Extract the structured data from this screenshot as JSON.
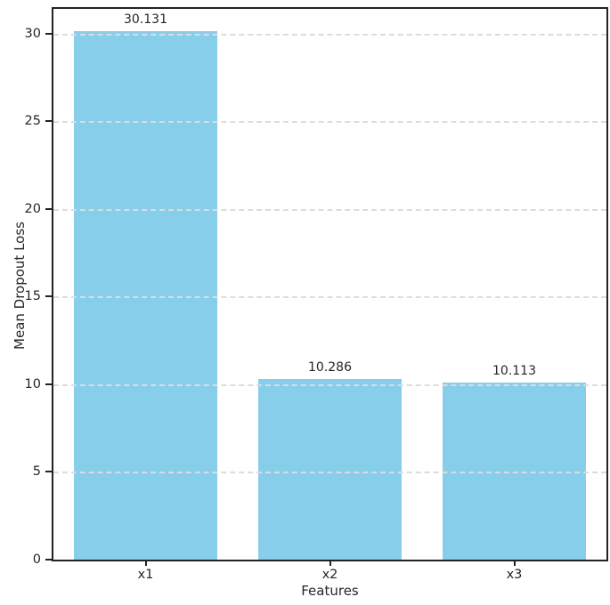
{
  "chart_data": {
    "type": "bar",
    "categories": [
      "x1",
      "x2",
      "x3"
    ],
    "values": [
      30.131,
      10.286,
      10.113
    ],
    "value_labels": [
      "30.131",
      "10.286",
      "10.113"
    ],
    "title": "",
    "xlabel": "Features",
    "ylabel": "Mean Dropout Loss",
    "yticks": [
      0,
      5,
      10,
      15,
      20,
      25,
      30
    ],
    "ylim": [
      0,
      31.4
    ],
    "bar_color": "#87ceeb",
    "grid": "horizontal-dashed",
    "grid_color": "#dcdcdc",
    "spine_color": "#222222",
    "text_color": "#262626",
    "legend": "none",
    "bar_width_fraction": 0.78
  }
}
